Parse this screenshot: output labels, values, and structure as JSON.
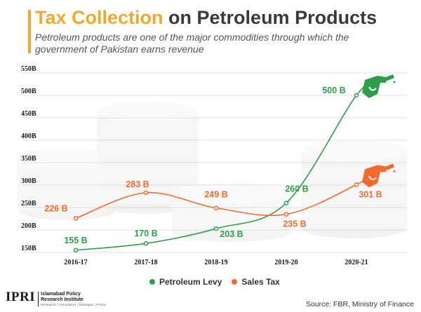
{
  "header": {
    "title_highlight": "Tax Collection",
    "title_rest": "on Petroleum Products",
    "subtitle": "Petroleum products are one of the major commodities through which the government of Pakistan earns revenue"
  },
  "colors": {
    "accent": "#f0a92e",
    "petroleum_levy": "#2e9e4a",
    "sales_tax": "#f26a2e"
  },
  "chart_data": {
    "type": "line",
    "categories": [
      "2016-17",
      "2017-18",
      "2018-19",
      "2019-20",
      "2020-21"
    ],
    "y_tick_labels": [
      "150B",
      "200B",
      "250B",
      "300B",
      "350B",
      "400B",
      "450B",
      "500B",
      "550B"
    ],
    "y_tick_values": [
      150,
      200,
      250,
      300,
      350,
      400,
      450,
      500,
      550
    ],
    "ylim": [
      150,
      550
    ],
    "grid": "horizontal",
    "legend_position": "bottom-center",
    "series": [
      {
        "name": "Petroleum Levy",
        "values": [
          155,
          170,
          203,
          260,
          500
        ],
        "labels": [
          "155 B",
          "170 B",
          "203 B",
          "260 B",
          "500 B"
        ],
        "color": "#2e9e4a",
        "end_icon": "fuel-nozzle-icon"
      },
      {
        "name": "Sales Tax",
        "values": [
          226,
          283,
          249,
          235,
          301
        ],
        "labels": [
          "226 B",
          "283 B",
          "249 B",
          "235 B",
          "301 B"
        ],
        "color": "#f26a2e",
        "end_icon": "fuel-nozzle-icon"
      }
    ]
  },
  "legend": {
    "items": [
      "Petroleum Levy",
      "Sales Tax"
    ]
  },
  "footer": {
    "logo_mark": "IPRI",
    "logo_name": "Islamabad Policy Research Institute",
    "logo_tagline": "Research | Innovation | Dialogue | Policy",
    "source": "Source: FBR, Ministry of Finance"
  }
}
